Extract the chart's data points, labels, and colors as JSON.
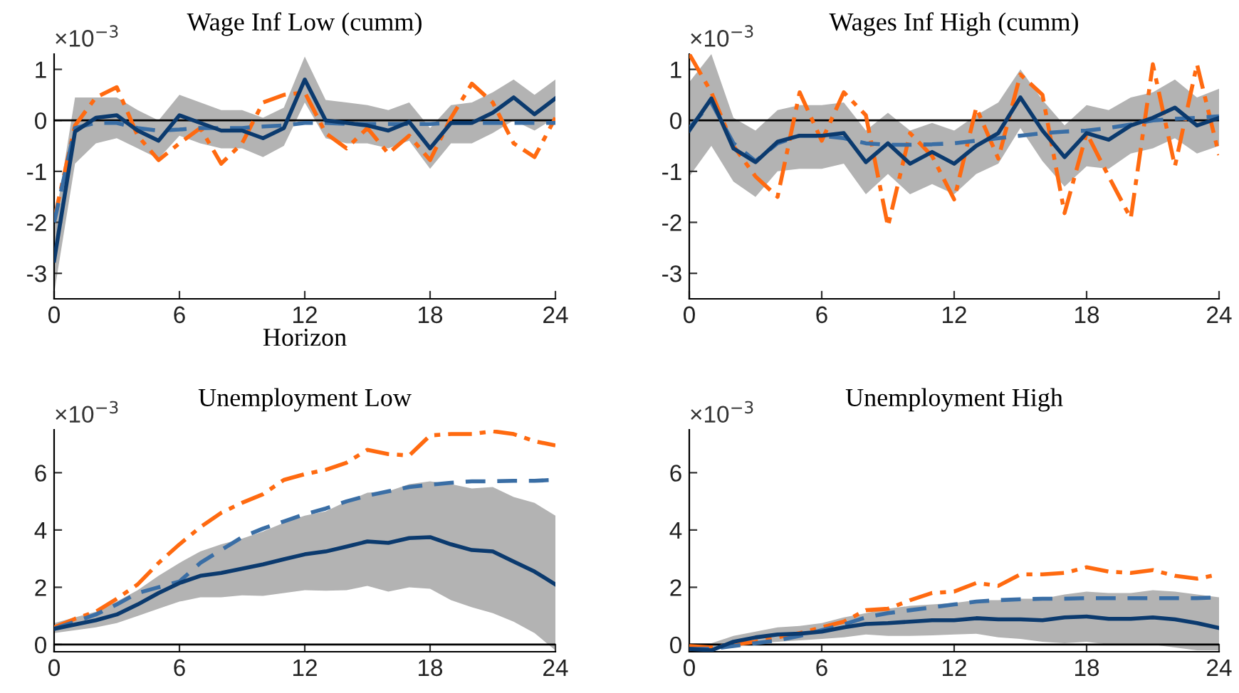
{
  "chart_data": [
    {
      "type": "line",
      "title": "Wage Inf Low (cumm)",
      "xlabel": "Horizon",
      "annotations": [
        "×10$^{−3}$"
      ],
      "x": [
        0,
        1,
        2,
        3,
        4,
        5,
        6,
        7,
        8,
        9,
        10,
        11,
        12,
        13,
        14,
        15,
        16,
        17,
        18,
        19,
        20,
        21,
        22,
        23,
        24
      ],
      "xlim": [
        0,
        24
      ],
      "xticks": [
        0,
        6,
        12,
        18,
        24
      ],
      "ylim": [
        -3.5,
        1.3
      ],
      "yticks": [
        -3,
        -2,
        -1,
        0,
        1
      ],
      "grid": false,
      "legend": false,
      "ref_lines": [
        {
          "axis": "y",
          "value": 0,
          "color": "#000000"
        }
      ],
      "series": [
        {
          "color": "#ff6a10",
          "line_style": "dashdot",
          "values": [
            -1.95,
            -0.1,
            0.45,
            0.65,
            -0.3,
            -0.78,
            -0.45,
            -0.15,
            -0.85,
            -0.45,
            0.35,
            0.5,
            0.55,
            -0.25,
            -0.55,
            -0.15,
            -0.65,
            -0.3,
            -0.78,
            0.05,
            0.72,
            0.35,
            -0.45,
            -0.72,
            0.05
          ]
        },
        {
          "color": "#3a6ea5",
          "line_style": "dashed",
          "values": [
            -2.0,
            -0.15,
            -0.05,
            -0.05,
            -0.15,
            -0.2,
            -0.18,
            -0.15,
            -0.15,
            -0.15,
            -0.12,
            -0.1,
            -0.05,
            -0.05,
            -0.07,
            -0.07,
            -0.07,
            -0.07,
            -0.07,
            -0.05,
            -0.05,
            -0.05,
            -0.05,
            -0.05,
            -0.05
          ]
        },
        {
          "color": "#0b3a6e",
          "line_style": "solid",
          "values": [
            -2.75,
            -0.22,
            0.05,
            0.1,
            -0.2,
            -0.4,
            0.1,
            -0.05,
            -0.2,
            -0.2,
            -0.35,
            -0.15,
            0.8,
            0.0,
            -0.05,
            -0.1,
            -0.2,
            -0.03,
            -0.55,
            -0.05,
            -0.05,
            0.15,
            0.45,
            0.12,
            0.43
          ],
          "lower": [
            -3.4,
            -0.85,
            -0.45,
            -0.35,
            -0.55,
            -0.75,
            -0.3,
            -0.45,
            -0.55,
            -0.55,
            -0.72,
            -0.5,
            0.35,
            -0.35,
            -0.45,
            -0.45,
            -0.55,
            -0.4,
            -0.95,
            -0.45,
            -0.45,
            -0.25,
            0.0,
            -0.2,
            0.05
          ],
          "upper": [
            -2.1,
            0.45,
            0.45,
            0.45,
            0.2,
            0.0,
            0.5,
            0.35,
            0.2,
            0.2,
            0.05,
            0.25,
            1.25,
            0.4,
            0.35,
            0.3,
            0.2,
            0.35,
            -0.15,
            0.3,
            0.35,
            0.55,
            0.8,
            0.5,
            0.8
          ]
        }
      ]
    },
    {
      "type": "line",
      "title": "Wages Inf High (cumm)",
      "annotations": [
        "×10$^{−3}$"
      ],
      "x": [
        0,
        1,
        2,
        3,
        4,
        5,
        6,
        7,
        8,
        9,
        10,
        11,
        12,
        13,
        14,
        15,
        16,
        17,
        18,
        19,
        20,
        21,
        22,
        23,
        24
      ],
      "xlim": [
        0,
        24
      ],
      "xticks": [
        0,
        6,
        12,
        18,
        24
      ],
      "ylim": [
        -3.5,
        1.3
      ],
      "yticks": [
        -3,
        -2,
        -1,
        0,
        1
      ],
      "grid": false,
      "legend": false,
      "ref_lines": [
        {
          "axis": "y",
          "value": 0,
          "color": "#000000"
        }
      ],
      "series": [
        {
          "color": "#ff6a10",
          "line_style": "dashdot",
          "values": [
            1.3,
            0.55,
            -0.5,
            -1.1,
            -1.5,
            0.55,
            -0.4,
            0.55,
            0.1,
            -2.08,
            -0.25,
            -0.7,
            -1.55,
            0.25,
            -0.75,
            0.9,
            0.5,
            -1.82,
            -0.25,
            -1.1,
            -1.92,
            1.1,
            -0.9,
            1.1,
            -0.68
          ]
        },
        {
          "color": "#3a6ea5",
          "line_style": "dashed",
          "values": [
            -0.15,
            0.35,
            -0.45,
            -0.8,
            -0.45,
            -0.3,
            -0.3,
            -0.35,
            -0.45,
            -0.48,
            -0.48,
            -0.47,
            -0.45,
            -0.4,
            -0.35,
            -0.3,
            -0.25,
            -0.22,
            -0.2,
            -0.15,
            -0.08,
            0.0,
            0.03,
            0.05,
            0.08
          ]
        },
        {
          "color": "#0b3a6e",
          "line_style": "solid",
          "values": [
            -0.2,
            0.43,
            -0.55,
            -0.82,
            -0.42,
            -0.3,
            -0.3,
            -0.25,
            -0.82,
            -0.45,
            -0.85,
            -0.62,
            -0.85,
            -0.5,
            -0.25,
            0.45,
            -0.2,
            -0.72,
            -0.25,
            -0.38,
            -0.1,
            0.05,
            0.25,
            -0.1,
            0.05
          ],
          "lower": [
            -1.1,
            -0.5,
            -1.2,
            -1.5,
            -1.0,
            -0.95,
            -0.95,
            -0.85,
            -1.45,
            -1.05,
            -1.45,
            -1.25,
            -1.45,
            -1.05,
            -0.85,
            -0.15,
            -0.8,
            -1.3,
            -0.9,
            -0.95,
            -0.65,
            -0.55,
            -0.35,
            -0.65,
            -0.5
          ],
          "upper": [
            0.75,
            1.3,
            0.05,
            -0.2,
            0.2,
            0.3,
            0.3,
            0.35,
            -0.2,
            0.15,
            -0.2,
            -0.05,
            -0.2,
            0.1,
            0.35,
            1.0,
            0.4,
            -0.1,
            0.3,
            0.2,
            0.45,
            0.55,
            0.8,
            0.45,
            0.62
          ]
        }
      ]
    },
    {
      "type": "line",
      "title": "Unemployment Low",
      "annotations": [
        "×10$^{−3}$"
      ],
      "x": [
        0,
        1,
        2,
        3,
        4,
        5,
        6,
        7,
        8,
        9,
        10,
        11,
        12,
        13,
        14,
        15,
        16,
        17,
        18,
        19,
        20,
        21,
        22,
        23,
        24
      ],
      "xlim": [
        0,
        24
      ],
      "xticks": [
        0,
        6,
        12,
        18,
        24
      ],
      "ylim": [
        -0.25,
        7.5
      ],
      "yticks": [
        0,
        2,
        4,
        6
      ],
      "grid": false,
      "legend": false,
      "ref_lines": [
        {
          "axis": "y",
          "value": 0,
          "color": "#000000"
        }
      ],
      "series": [
        {
          "color": "#ff6a10",
          "line_style": "dashdot",
          "values": [
            0.6,
            0.9,
            1.15,
            1.6,
            2.1,
            2.85,
            3.5,
            4.1,
            4.6,
            4.95,
            5.25,
            5.75,
            5.95,
            6.1,
            6.35,
            6.8,
            6.65,
            6.6,
            7.3,
            7.35,
            7.35,
            7.45,
            7.35,
            7.1,
            6.95
          ]
        },
        {
          "color": "#3a6ea5",
          "line_style": "dashed",
          "values": [
            0.55,
            0.8,
            1.05,
            1.4,
            1.8,
            2.0,
            2.2,
            2.85,
            3.3,
            3.75,
            4.05,
            4.3,
            4.55,
            4.75,
            5.0,
            5.2,
            5.35,
            5.5,
            5.58,
            5.65,
            5.7,
            5.7,
            5.72,
            5.72,
            5.75
          ]
        },
        {
          "color": "#0b3a6e",
          "line_style": "solid",
          "values": [
            0.55,
            0.7,
            0.85,
            1.05,
            1.4,
            1.8,
            2.15,
            2.4,
            2.5,
            2.65,
            2.8,
            2.98,
            3.15,
            3.25,
            3.42,
            3.6,
            3.55,
            3.72,
            3.75,
            3.5,
            3.3,
            3.25,
            2.9,
            2.55,
            2.1
          ],
          "lower": [
            0.4,
            0.5,
            0.6,
            0.75,
            1.0,
            1.25,
            1.5,
            1.65,
            1.65,
            1.72,
            1.7,
            1.8,
            1.9,
            1.88,
            1.9,
            2.05,
            1.85,
            2.0,
            1.95,
            1.55,
            1.3,
            1.1,
            0.8,
            0.4,
            -0.2
          ],
          "upper": [
            0.75,
            0.95,
            1.15,
            1.5,
            1.9,
            2.4,
            2.85,
            3.25,
            3.5,
            3.7,
            3.95,
            4.25,
            4.5,
            4.65,
            5.0,
            5.3,
            5.35,
            5.6,
            5.7,
            5.6,
            5.45,
            5.5,
            5.15,
            4.95,
            4.5
          ]
        }
      ]
    },
    {
      "type": "line",
      "title": "Unemployment High",
      "annotations": [
        "×10$^{−3}$"
      ],
      "x": [
        0,
        1,
        2,
        3,
        4,
        5,
        6,
        7,
        8,
        9,
        10,
        11,
        12,
        13,
        14,
        15,
        16,
        17,
        18,
        19,
        20,
        21,
        22,
        23,
        24
      ],
      "xlim": [
        0,
        24
      ],
      "xticks": [
        0,
        6,
        12,
        18,
        24
      ],
      "ylim": [
        -0.25,
        7.5
      ],
      "yticks": [
        0,
        2,
        4,
        6
      ],
      "grid": false,
      "legend": false,
      "ref_lines": [
        {
          "axis": "y",
          "value": 0,
          "color": "#000000"
        }
      ],
      "series": [
        {
          "color": "#ff6a10",
          "line_style": "dashdot",
          "values": [
            -0.05,
            -0.1,
            0.0,
            0.1,
            0.25,
            0.4,
            0.6,
            0.8,
            1.2,
            1.25,
            1.55,
            1.8,
            1.85,
            2.15,
            2.05,
            2.45,
            2.45,
            2.5,
            2.7,
            2.55,
            2.5,
            2.6,
            2.4,
            2.3,
            2.45
          ]
        },
        {
          "color": "#3a6ea5",
          "line_style": "dashed",
          "values": [
            -0.15,
            -0.15,
            -0.05,
            0.05,
            0.15,
            0.3,
            0.5,
            0.7,
            0.95,
            1.1,
            1.2,
            1.3,
            1.4,
            1.5,
            1.55,
            1.58,
            1.6,
            1.6,
            1.62,
            1.62,
            1.62,
            1.62,
            1.62,
            1.62,
            1.65
          ]
        },
        {
          "color": "#0b3a6e",
          "line_style": "solid",
          "values": [
            -0.15,
            -0.2,
            0.1,
            0.25,
            0.35,
            0.38,
            0.45,
            0.6,
            0.72,
            0.75,
            0.8,
            0.85,
            0.85,
            0.92,
            0.88,
            0.88,
            0.85,
            0.95,
            0.98,
            0.9,
            0.9,
            0.95,
            0.88,
            0.75,
            0.58
          ],
          "lower": [
            -0.2,
            -0.2,
            -0.05,
            0.05,
            0.1,
            0.15,
            0.2,
            0.25,
            0.35,
            0.3,
            0.3,
            0.32,
            0.35,
            0.38,
            0.25,
            0.2,
            0.1,
            0.05,
            0.1,
            0.0,
            0.0,
            0.0,
            -0.1,
            -0.2,
            -0.2
          ],
          "upper": [
            0.05,
            0.05,
            0.3,
            0.45,
            0.6,
            0.65,
            0.75,
            0.95,
            1.1,
            1.25,
            1.35,
            1.4,
            1.45,
            1.55,
            1.55,
            1.6,
            1.6,
            1.75,
            1.85,
            1.8,
            1.8,
            1.9,
            1.85,
            1.75,
            1.65
          ]
        }
      ]
    }
  ]
}
